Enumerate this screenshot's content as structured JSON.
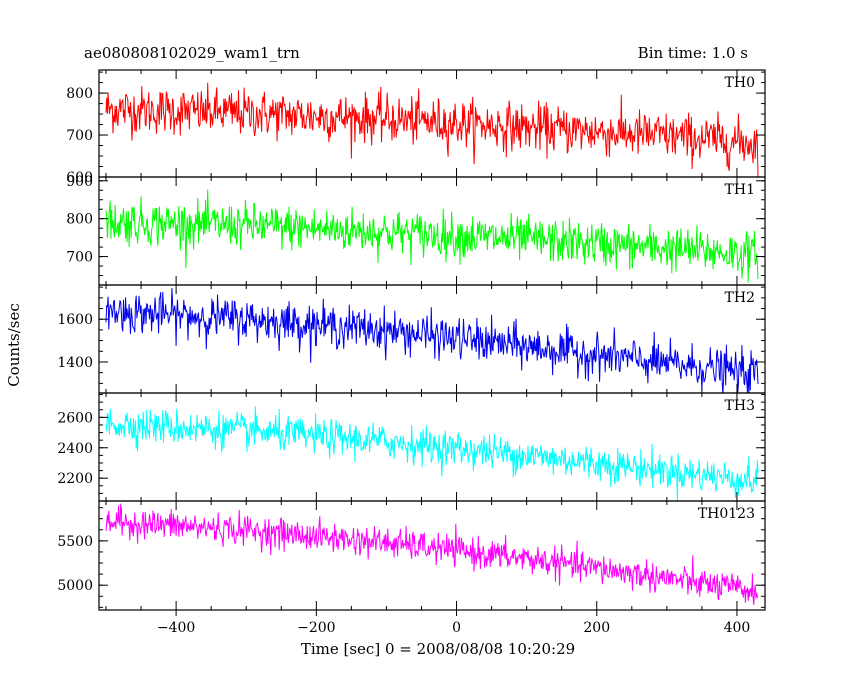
{
  "header": {
    "title_left": "ae080808102029_wam1_trn",
    "title_right": "Bin time: 1.0 s"
  },
  "axes": {
    "ylabel": "Counts/sec",
    "xlabel": "Time [sec] 0 = 2008/08/08 10:20:29"
  },
  "chart_data": {
    "type": "line",
    "xlim": [
      -510,
      440
    ],
    "x_range_data": [
      -500,
      430
    ],
    "xticks": [
      -400,
      -200,
      0,
      200,
      400
    ],
    "xtick_labels": [
      "−400",
      "−200",
      "0",
      "200",
      "400"
    ],
    "bin_time": 1.0,
    "grid": false,
    "panels": [
      {
        "name": "TH0",
        "color": "#ff0000",
        "ylim": [
          600,
          855
        ],
        "yticks": [
          600,
          700,
          800
        ],
        "ytick_labels": [
          "600",
          "700",
          "800"
        ],
        "trend": [
          [
            -500,
            762
          ],
          [
            -300,
            752
          ],
          [
            -100,
            738
          ],
          [
            100,
            718
          ],
          [
            300,
            698
          ],
          [
            430,
            680
          ]
        ],
        "noise_sd": 28
      },
      {
        "name": "TH1",
        "color": "#00ff00",
        "ylim": [
          625,
          910
        ],
        "yticks": [
          700,
          800,
          900
        ],
        "ytick_labels": [
          "700",
          "800",
          "900"
        ],
        "trend": [
          [
            -500,
            792
          ],
          [
            -300,
            782
          ],
          [
            -100,
            765
          ],
          [
            100,
            745
          ],
          [
            300,
            722
          ],
          [
            430,
            705
          ]
        ],
        "noise_sd": 29
      },
      {
        "name": "TH2",
        "color": "#0000ee",
        "ylim": [
          1255,
          1760
        ],
        "yticks": [
          1400,
          1600
        ],
        "ytick_labels": [
          "1400",
          "1600"
        ],
        "trend": [
          [
            -500,
            1638
          ],
          [
            -300,
            1600
          ],
          [
            -100,
            1548
          ],
          [
            100,
            1472
          ],
          [
            300,
            1392
          ],
          [
            430,
            1345
          ]
        ],
        "noise_sd": 48
      },
      {
        "name": "TH3",
        "color": "#00ffff",
        "ylim": [
          2050,
          2760
        ],
        "yticks": [
          2200,
          2400,
          2600
        ],
        "ytick_labels": [
          "2200",
          "2400",
          "2600"
        ],
        "trend": [
          [
            -500,
            2560
          ],
          [
            -300,
            2510
          ],
          [
            -100,
            2440
          ],
          [
            100,
            2350
          ],
          [
            300,
            2250
          ],
          [
            430,
            2180
          ]
        ],
        "noise_sd": 58
      },
      {
        "name": "TH0123",
        "color": "#ff00ff",
        "ylim": [
          4720,
          5950
        ],
        "yticks": [
          5000,
          5500
        ],
        "ytick_labels": [
          "5000",
          "5500"
        ],
        "trend": [
          [
            -500,
            5720
          ],
          [
            -300,
            5620
          ],
          [
            -100,
            5480
          ],
          [
            100,
            5300
          ],
          [
            300,
            5080
          ],
          [
            430,
            4920
          ]
        ],
        "noise_sd": 85
      }
    ]
  }
}
